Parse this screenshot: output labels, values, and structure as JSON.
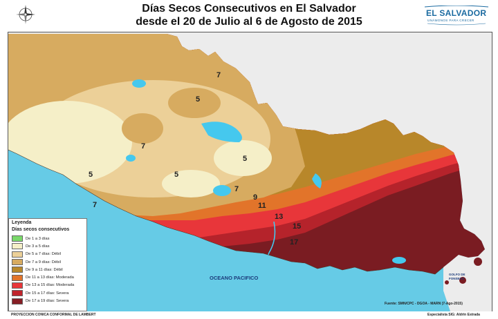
{
  "header": {
    "title_line1": "Días Secos Consecutivos en El Salvador",
    "title_line2": "desde el 20 de Julio al 6 de Agosto de 2015",
    "logo_name": "EL SALVADOR",
    "logo_tagline": "UNÁMONOS PARA CRECER"
  },
  "map": {
    "zone_labels": [
      "7",
      "5",
      "7",
      "5",
      "5",
      "5",
      "7",
      "7",
      "9",
      "11",
      "13",
      "15",
      "17"
    ],
    "ocean_label": "OCEANO PACIFICO",
    "gulf_label": [
      "GOLFO DE",
      "FONSECA"
    ]
  },
  "legend": {
    "title": "Leyenda",
    "subtitle": "Días secos consecutivos",
    "items": [
      {
        "label": "De 1 a 3 días",
        "color": "#7bd96b"
      },
      {
        "label": "De 3 a 5 días",
        "color": "#f5efc8"
      },
      {
        "label": "De 5 a 7 días: Débil",
        "color": "#ecd098"
      },
      {
        "label": "De 7 a 9 días: Débil",
        "color": "#d7ab60"
      },
      {
        "label": "De 9 a 11 días: Débil",
        "color": "#b8872a"
      },
      {
        "label": "De 11 a 13 días: Moderada",
        "color": "#e2742a"
      },
      {
        "label": "De 13 a 15 días: Moderada",
        "color": "#e8363a"
      },
      {
        "label": "De 15 a 17 días: Severa",
        "color": "#c0242c"
      },
      {
        "label": "De 17 a 19 días: Severa",
        "color": "#861e25"
      }
    ]
  },
  "footer": {
    "source": "Fuente: SMN/CPC - DGOA - MARN (7-Ago-2015)",
    "projection": "PROYECCION CONICA CONFORMAL DE LAMBERT",
    "author": "Especialista SIG: Aldrin Estrada"
  }
}
